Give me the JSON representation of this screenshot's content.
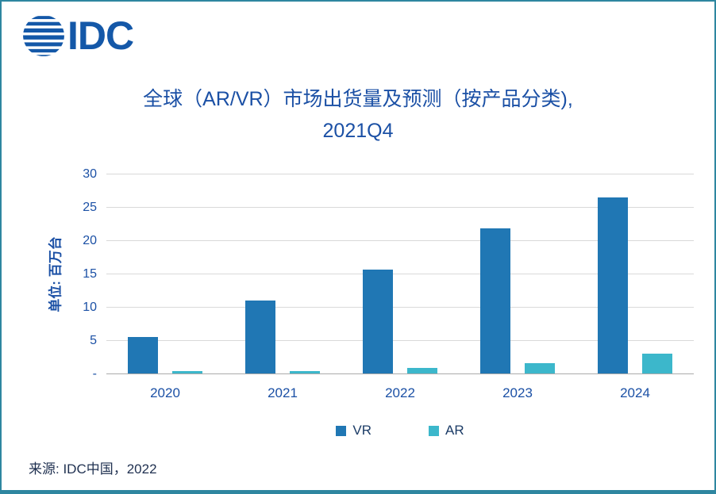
{
  "logo": {
    "text": "IDC"
  },
  "title": {
    "line1": "全球（AR/VR）市场出货量及预测（按产品分类),",
    "line2": "2021Q4"
  },
  "source": {
    "text": "来源:  IDC中国，2022"
  },
  "colors": {
    "vr_bar": "#2077B4",
    "ar_bar": "#3CB7CB",
    "text_blue": "#1B50A5",
    "border_teal": "#2E86A0",
    "logo_blue": "#1458A8"
  },
  "chart_data": {
    "type": "bar",
    "title": "全球（AR/VR）市场出货量及预测（按产品分类), 2021Q4",
    "categories": [
      "2020",
      "2021",
      "2022",
      "2023",
      "2024"
    ],
    "series": [
      {
        "name": "VR",
        "color": "#2077B4",
        "values": [
          5.5,
          10.9,
          15.6,
          21.8,
          26.4
        ]
      },
      {
        "name": "AR",
        "color": "#3CB7CB",
        "values": [
          0.3,
          0.3,
          0.8,
          1.5,
          3.0
        ]
      }
    ],
    "xlabel": "",
    "ylabel": "单位: 百万台",
    "ylim": [
      0,
      30
    ],
    "yticks": [
      {
        "value": 30,
        "label": "30"
      },
      {
        "value": 25,
        "label": "25"
      },
      {
        "value": 20,
        "label": "20"
      },
      {
        "value": 15,
        "label": "15"
      },
      {
        "value": 10,
        "label": "10"
      },
      {
        "value": 5,
        "label": "5"
      },
      {
        "value": 0,
        "label": "-"
      }
    ],
    "grid": true,
    "legend_position": "bottom"
  }
}
